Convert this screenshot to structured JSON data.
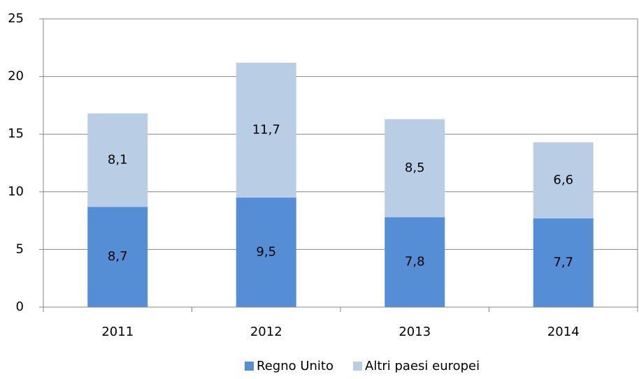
{
  "chart_data": {
    "type": "stacked_bar",
    "categories": [
      "2011",
      "2012",
      "2013",
      "2014"
    ],
    "series": [
      {
        "name": "Regno Unito",
        "color": "#558ed5",
        "values": [
          8.7,
          9.5,
          7.8,
          7.7
        ],
        "value_labels": [
          "8,7",
          "9,5",
          "7,8",
          "7,7"
        ]
      },
      {
        "name": "Altri paesi europei",
        "color": "#b9cde5",
        "values": [
          8.1,
          11.7,
          8.5,
          6.6
        ],
        "value_labels": [
          "8,1",
          "11,7",
          "8,5",
          "6,6"
        ]
      }
    ],
    "ylim": [
      0,
      25
    ],
    "yticks": [
      0,
      5,
      10,
      15,
      20,
      25
    ],
    "grid": true,
    "legend": "bottom"
  }
}
